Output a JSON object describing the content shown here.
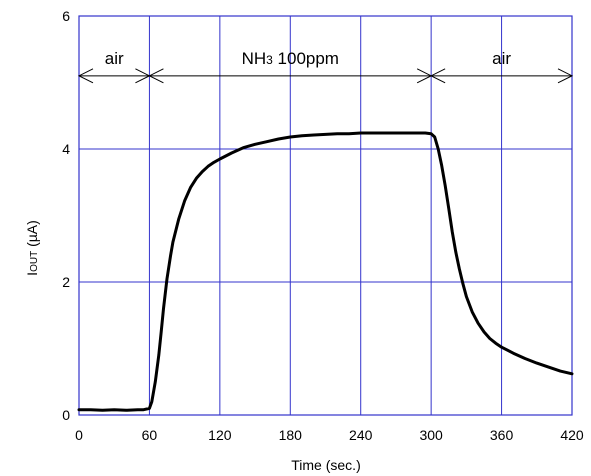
{
  "chart_data": {
    "type": "line",
    "title": "",
    "xlabel": "Time (sec.)",
    "ylabel": "I",
    "ylabel_sub": "OUT",
    "ylabel_unit": " (µA)",
    "xlim": [
      0,
      420
    ],
    "ylim": [
      0,
      6
    ],
    "xticks": [
      0,
      60,
      120,
      180,
      240,
      300,
      360,
      420
    ],
    "yticks": [
      0,
      2,
      4,
      6
    ],
    "grid": true,
    "colors": {
      "grid": "#3333cc",
      "frame": "#3333cc",
      "line": "#000000",
      "arrow": "#000000"
    },
    "annotations": [
      {
        "label": "air",
        "x_start": 0,
        "x_end": 60,
        "y": 5.1
      },
      {
        "label": "NH",
        "label_sub": "3",
        "label_rest": " 100ppm",
        "x_start": 60,
        "x_end": 300,
        "y": 5.1
      },
      {
        "label": "air",
        "x_start": 300,
        "x_end": 420,
        "y": 5.1
      }
    ],
    "series": [
      {
        "x": [
          0,
          10,
          20,
          30,
          40,
          50,
          55,
          60,
          62,
          65,
          68,
          70,
          72,
          75,
          78,
          80,
          85,
          90,
          95,
          100,
          105,
          110,
          115,
          120,
          130,
          140,
          150,
          160,
          170,
          180,
          190,
          200,
          210,
          220,
          230,
          240,
          250,
          260,
          270,
          280,
          290,
          295,
          300,
          303,
          306,
          309,
          312,
          315,
          318,
          321,
          324,
          327,
          330,
          335,
          340,
          345,
          350,
          355,
          360,
          370,
          380,
          390,
          400,
          410,
          420
        ],
        "y": [
          0.08,
          0.08,
          0.07,
          0.08,
          0.07,
          0.08,
          0.08,
          0.1,
          0.2,
          0.5,
          0.9,
          1.25,
          1.6,
          2.05,
          2.4,
          2.6,
          2.95,
          3.22,
          3.42,
          3.56,
          3.66,
          3.74,
          3.8,
          3.85,
          3.94,
          4.02,
          4.07,
          4.11,
          4.15,
          4.18,
          4.2,
          4.21,
          4.22,
          4.23,
          4.23,
          4.24,
          4.24,
          4.24,
          4.24,
          4.24,
          4.24,
          4.24,
          4.23,
          4.18,
          4.0,
          3.75,
          3.45,
          3.1,
          2.75,
          2.45,
          2.2,
          1.98,
          1.78,
          1.55,
          1.38,
          1.25,
          1.15,
          1.08,
          1.02,
          0.93,
          0.85,
          0.78,
          0.72,
          0.66,
          0.62
        ]
      }
    ]
  }
}
